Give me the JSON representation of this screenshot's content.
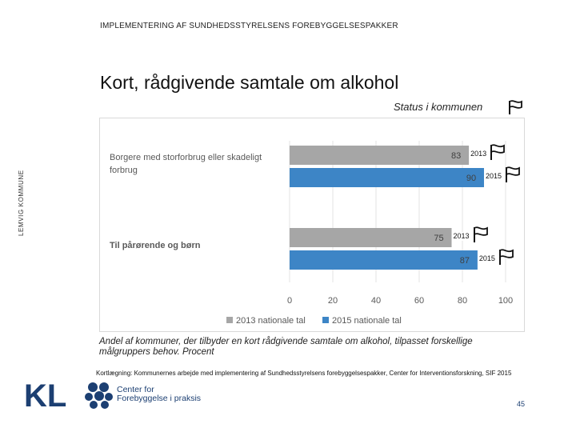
{
  "header": {
    "top_label": "IMPLEMENTERING AF SUNDHEDSSTYRELSENS FOREBYGGELSESPAKKER",
    "side_label": "LEMVIG KOMMUNE",
    "title": "Kort, rådgivende samtale om alkohol"
  },
  "status": {
    "label": "Status i kommunen",
    "icon": "flag-icon"
  },
  "chart_data": {
    "type": "bar",
    "orientation": "horizontal",
    "categories": [
      "Borgere med storforbrug eller skadeligt forbrug",
      "Til pårørende og børn"
    ],
    "series": [
      {
        "name": "2013 nationale tal",
        "values": [
          83,
          75
        ],
        "color": "#a6a6a6"
      },
      {
        "name": "2015 nationale tal",
        "values": [
          90,
          87
        ],
        "color": "#3d85c6"
      }
    ],
    "xlim": [
      0,
      100
    ],
    "xticks": [
      0,
      20,
      40,
      60,
      80,
      100
    ],
    "legend": "bottom",
    "bar_annotations": [
      {
        "label": "2013",
        "icon": "flag-icon"
      },
      {
        "label": "2015",
        "icon": "flag-icon"
      },
      {
        "label": "2013",
        "icon": "flag-icon"
      },
      {
        "label": "2015",
        "icon": "flag-icon"
      }
    ]
  },
  "caption": "Andel af kommuner, der tilbyder en kort rådgivende samtale om alkohol, tilpasset forskellige målgruppers behov. Procent",
  "source": "Kortlægning: Kommunernes arbejde med implementering af Sundhedsstyrelsens forebyggelsespakker, Center for Interventionsforskning, SIF 2015",
  "footer": {
    "kl_logo": "KL",
    "cfp_line1": "Center for",
    "cfp_line2": "Forebyggelse i praksis",
    "page_number": "45"
  },
  "colors": {
    "brand": "#1c3f72",
    "bar_2013": "#a6a6a6",
    "bar_2015": "#3d85c6"
  }
}
